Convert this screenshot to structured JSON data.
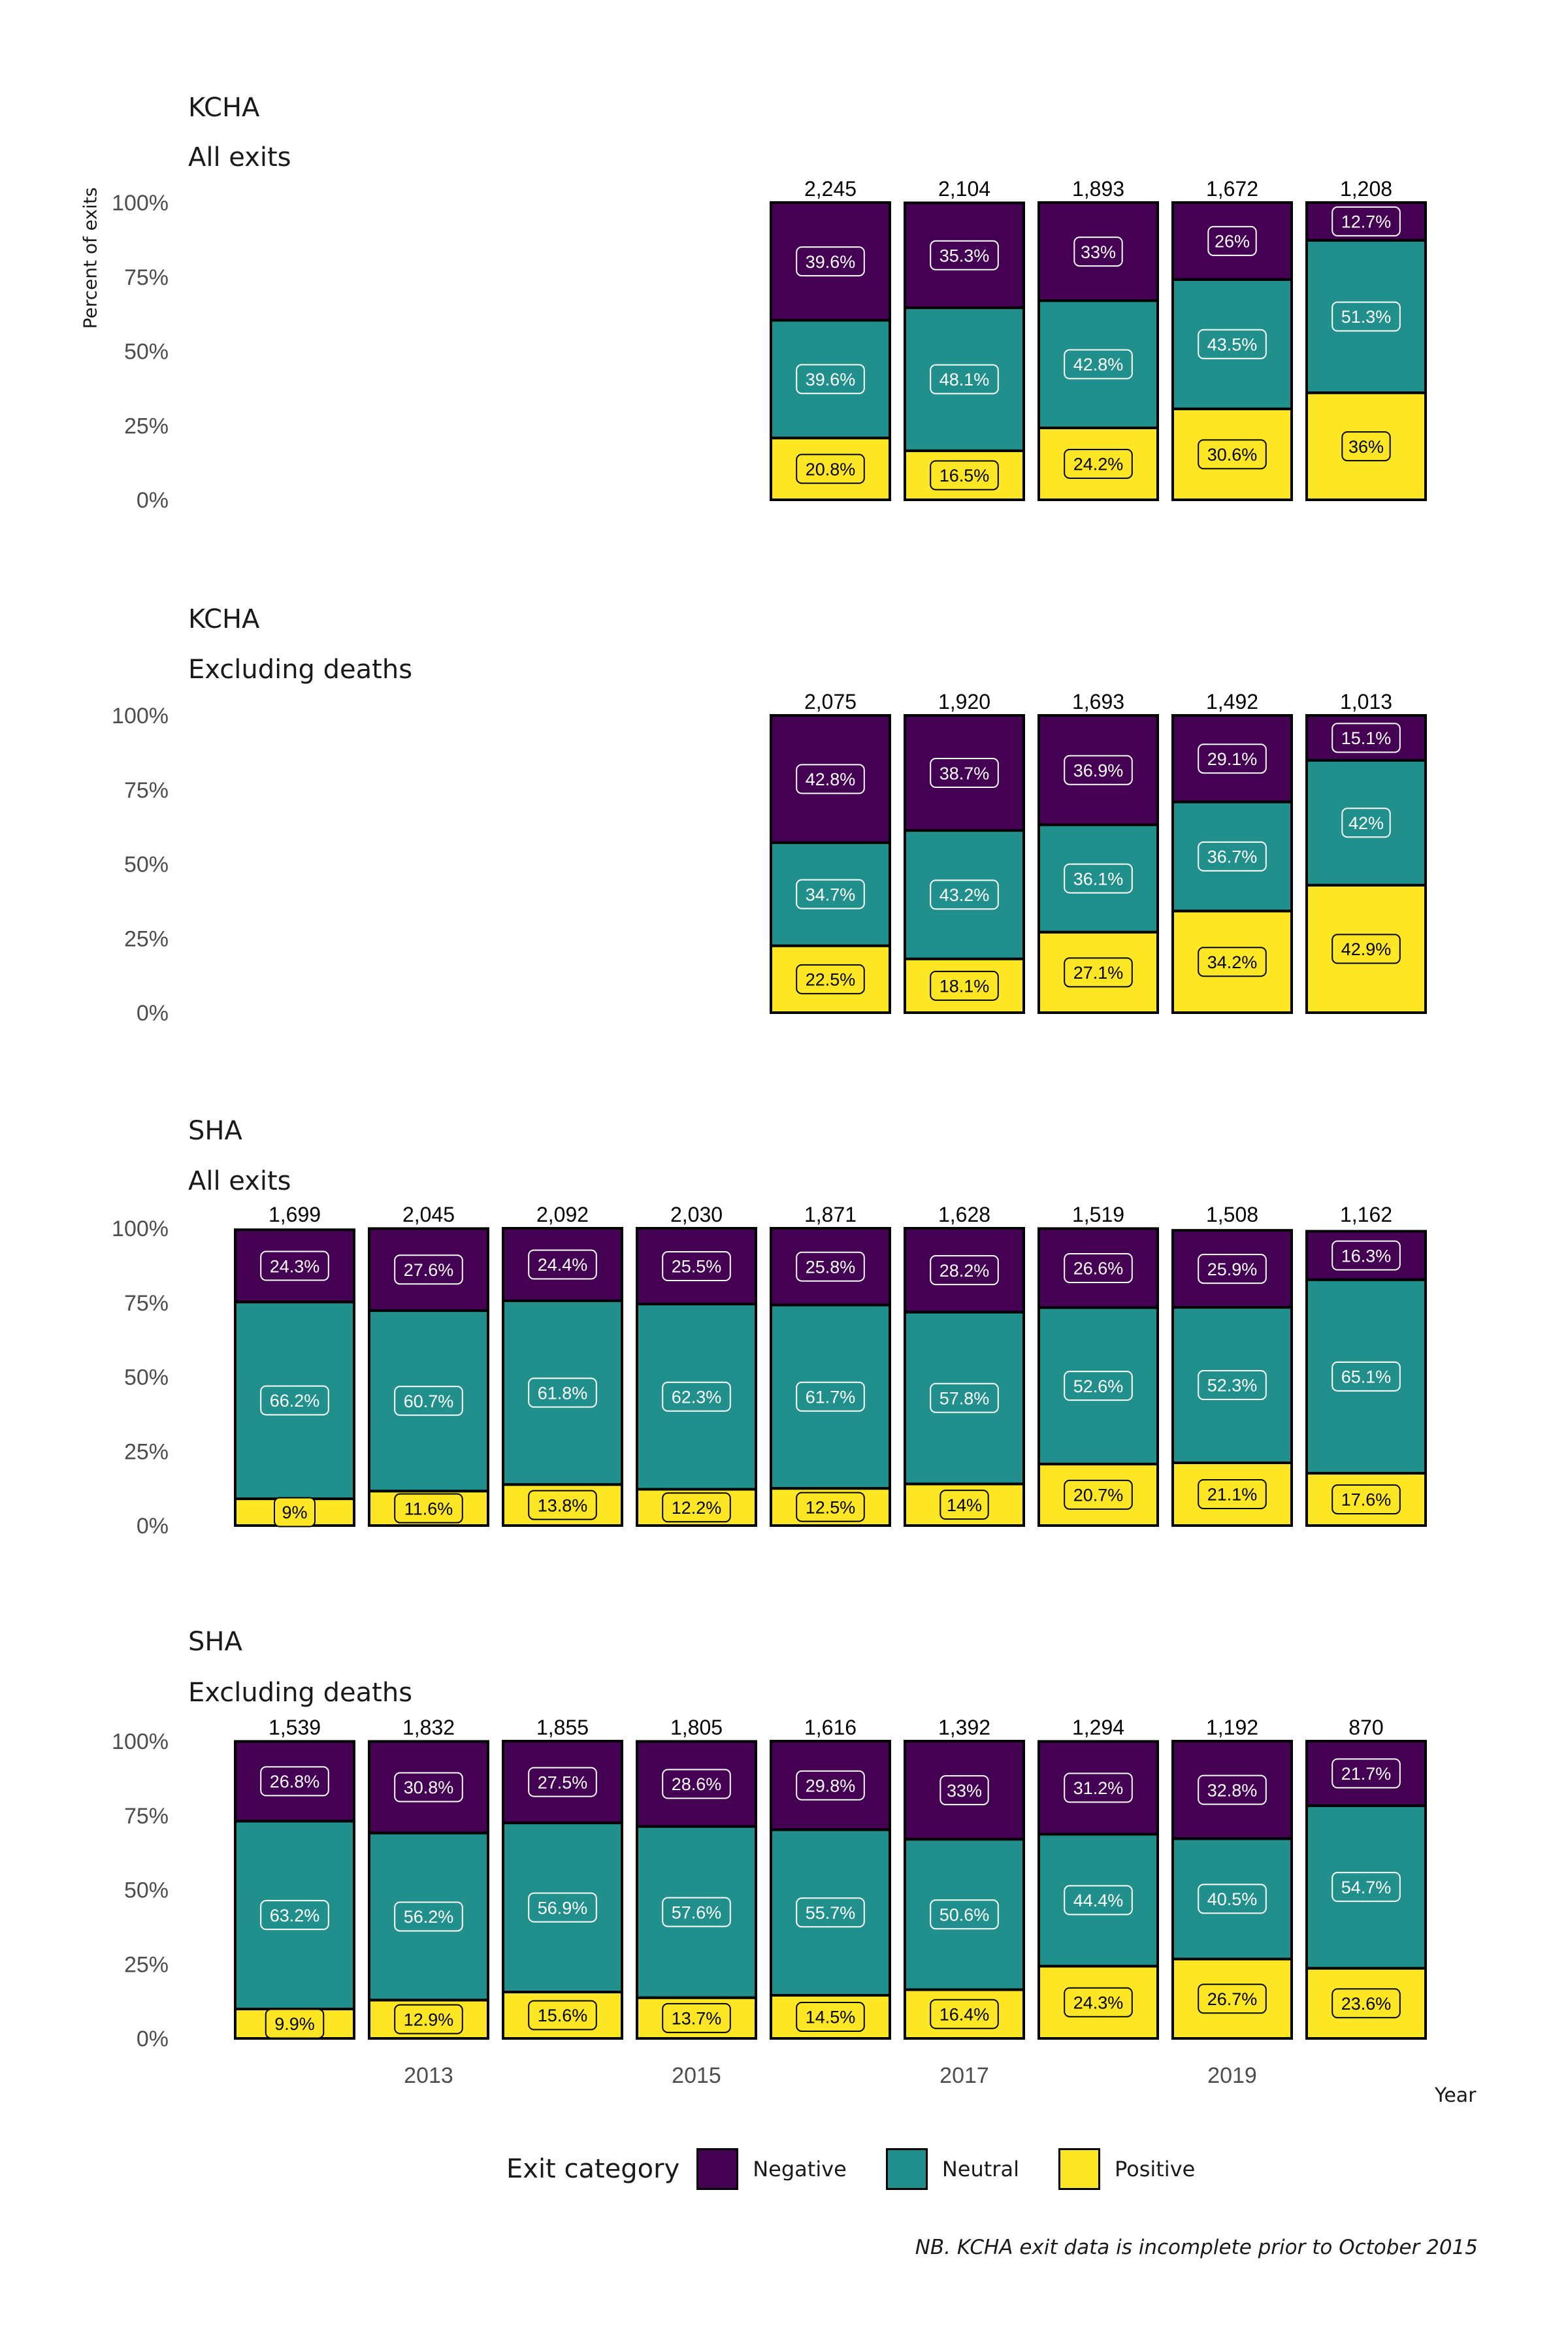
{
  "y_axis_label": "Percent of exits",
  "x_axis_label": "Year",
  "y_ticks": [
    "0%",
    "25%",
    "50%",
    "75%",
    "100%"
  ],
  "x_ticks": [
    {
      "year": 2013,
      "label": "2013"
    },
    {
      "year": 2015,
      "label": "2015"
    },
    {
      "year": 2017,
      "label": "2017"
    },
    {
      "year": 2019,
      "label": "2019"
    }
  ],
  "legend": {
    "title": "Exit category",
    "items": [
      {
        "name": "Negative",
        "color": "#440154"
      },
      {
        "name": "Neutral",
        "color": "#21908C"
      },
      {
        "name": "Positive",
        "color": "#FDE725"
      }
    ]
  },
  "footnote": "NB. KCHA exit data is incomplete prior to October 2015",
  "chart_data": [
    {
      "type": "bar",
      "stacked": "percent",
      "title": "KCHA",
      "subtitle": "All exits",
      "ylabel": "Percent of exits",
      "ylim": [
        0,
        100
      ],
      "years": [
        2016,
        2017,
        2018,
        2019,
        2020
      ],
      "totals": [
        "2,245",
        "2,104",
        "1,893",
        "1,672",
        "1,208"
      ],
      "series": [
        {
          "name": "Negative",
          "values": [
            39.6,
            35.3,
            33,
            26,
            12.7
          ],
          "labels": [
            "39.6%",
            "35.3%",
            "33%",
            "26%",
            "12.7%"
          ]
        },
        {
          "name": "Neutral",
          "values": [
            39.6,
            48.1,
            42.8,
            43.5,
            51.3
          ],
          "labels": [
            "39.6%",
            "48.1%",
            "42.8%",
            "43.5%",
            "51.3%"
          ]
        },
        {
          "name": "Positive",
          "values": [
            20.8,
            16.5,
            24.2,
            30.6,
            36
          ],
          "labels": [
            "20.8%",
            "16.5%",
            "24.2%",
            "30.6%",
            "36%"
          ]
        }
      ]
    },
    {
      "type": "bar",
      "stacked": "percent",
      "title": "KCHA",
      "subtitle": "Excluding deaths",
      "ylim": [
        0,
        100
      ],
      "years": [
        2016,
        2017,
        2018,
        2019,
        2020
      ],
      "totals": [
        "2,075",
        "1,920",
        "1,693",
        "1,492",
        "1,013"
      ],
      "series": [
        {
          "name": "Negative",
          "values": [
            42.8,
            38.7,
            36.9,
            29.1,
            15.1
          ],
          "labels": [
            "42.8%",
            "38.7%",
            "36.9%",
            "29.1%",
            "15.1%"
          ]
        },
        {
          "name": "Neutral",
          "values": [
            34.7,
            43.2,
            36.1,
            36.7,
            42
          ],
          "labels": [
            "34.7%",
            "43.2%",
            "36.1%",
            "36.7%",
            "42%"
          ]
        },
        {
          "name": "Positive",
          "values": [
            22.5,
            18.1,
            27.1,
            34.2,
            42.9
          ],
          "labels": [
            "22.5%",
            "18.1%",
            "27.1%",
            "34.2%",
            "42.9%"
          ]
        }
      ]
    },
    {
      "type": "bar",
      "stacked": "percent",
      "title": "SHA",
      "subtitle": "All exits",
      "ylim": [
        0,
        100
      ],
      "years": [
        2012,
        2013,
        2014,
        2015,
        2016,
        2017,
        2018,
        2019,
        2020
      ],
      "totals": [
        "1,699",
        "2,045",
        "2,092",
        "2,030",
        "1,871",
        "1,628",
        "1,519",
        "1,508",
        "1,162"
      ],
      "series": [
        {
          "name": "Negative",
          "values": [
            24.3,
            27.6,
            24.4,
            25.5,
            25.8,
            28.2,
            26.6,
            25.9,
            16.3
          ],
          "labels": [
            "24.3%",
            "27.6%",
            "24.4%",
            "25.5%",
            "25.8%",
            "28.2%",
            "26.6%",
            "25.9%",
            "16.3%"
          ]
        },
        {
          "name": "Neutral",
          "values": [
            66.2,
            60.7,
            61.8,
            62.3,
            61.7,
            57.8,
            52.6,
            52.3,
            65.1
          ],
          "labels": [
            "66.2%",
            "60.7%",
            "61.8%",
            "62.3%",
            "61.7%",
            "57.8%",
            "52.6%",
            "52.3%",
            "65.1%"
          ]
        },
        {
          "name": "Positive",
          "values": [
            9,
            11.6,
            13.8,
            12.2,
            12.5,
            14,
            20.7,
            21.1,
            17.6
          ],
          "labels": [
            "9%",
            "11.6%",
            "13.8%",
            "12.2%",
            "12.5%",
            "14%",
            "20.7%",
            "21.1%",
            "17.6%"
          ]
        }
      ]
    },
    {
      "type": "bar",
      "stacked": "percent",
      "title": "SHA",
      "subtitle": "Excluding deaths",
      "xlabel": "Year",
      "ylim": [
        0,
        100
      ],
      "years": [
        2012,
        2013,
        2014,
        2015,
        2016,
        2017,
        2018,
        2019,
        2020
      ],
      "totals": [
        "1,539",
        "1,832",
        "1,855",
        "1,805",
        "1,616",
        "1,392",
        "1,294",
        "1,192",
        "870"
      ],
      "series": [
        {
          "name": "Negative",
          "values": [
            26.8,
            30.8,
            27.5,
            28.6,
            29.8,
            33,
            31.2,
            32.8,
            21.7
          ],
          "labels": [
            "26.8%",
            "30.8%",
            "27.5%",
            "28.6%",
            "29.8%",
            "33%",
            "31.2%",
            "32.8%",
            "21.7%"
          ]
        },
        {
          "name": "Neutral",
          "values": [
            63.2,
            56.2,
            56.9,
            57.6,
            55.7,
            50.6,
            44.4,
            40.5,
            54.7
          ],
          "labels": [
            "63.2%",
            "56.2%",
            "56.9%",
            "57.6%",
            "55.7%",
            "50.6%",
            "44.4%",
            "40.5%",
            "54.7%"
          ]
        },
        {
          "name": "Positive",
          "values": [
            9.9,
            12.9,
            15.6,
            13.7,
            14.5,
            16.4,
            24.3,
            26.7,
            23.6
          ],
          "labels": [
            "9.9%",
            "12.9%",
            "15.6%",
            "13.7%",
            "14.5%",
            "16.4%",
            "24.3%",
            "26.7%",
            "23.6%"
          ]
        }
      ]
    }
  ]
}
